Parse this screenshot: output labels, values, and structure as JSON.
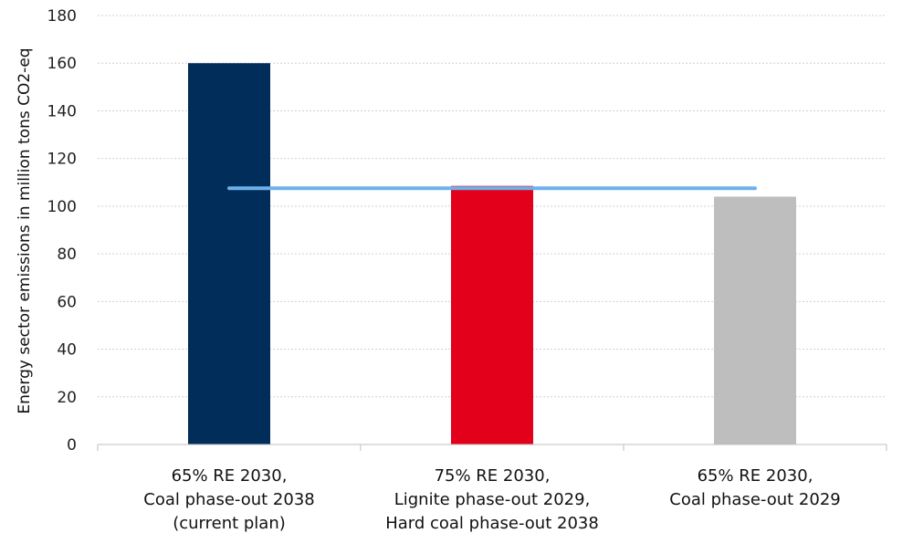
{
  "chart_data": {
    "type": "bar",
    "ylabel": "Energy sector emissions in  million tons CO2-eq",
    "ylim": [
      0,
      180
    ],
    "ytick_step": 20,
    "yticks": [
      "0",
      "20",
      "40",
      "60",
      "80",
      "100",
      "120",
      "140",
      "160",
      "180"
    ],
    "grid": true,
    "categories": [
      [
        "65% RE 2030,",
        "Coal phase-out 2038",
        "(current plan)"
      ],
      [
        "75% RE 2030,",
        "Lignite phase-out 2029,",
        "Hard coal phase-out 2038"
      ],
      [
        "65% RE 2030,",
        "Coal phase-out 2029"
      ]
    ],
    "values": [
      160,
      108.5,
      104
    ],
    "colors": [
      "#002d5a",
      "#e2001a",
      "#bebebe"
    ],
    "reference_line": {
      "value": 107.5,
      "color": "#6fb0ea"
    }
  }
}
